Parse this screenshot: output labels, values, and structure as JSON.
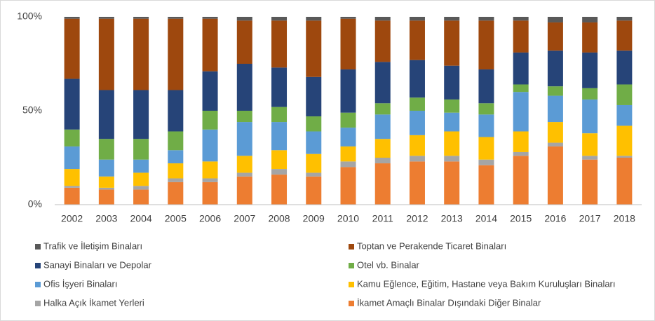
{
  "chart_data": {
    "type": "stacked_bar_100",
    "categories": [
      "2002",
      "2003",
      "2004",
      "2005",
      "2006",
      "2007",
      "2008",
      "2009",
      "2010",
      "2011",
      "2012",
      "2013",
      "2014",
      "2015",
      "2016",
      "2017",
      "2018"
    ],
    "series": [
      {
        "name": "Trafik ve İletişim Binaları",
        "color": "#595959",
        "values": [
          1,
          1,
          1,
          1,
          1,
          2,
          2,
          2,
          1,
          2,
          2,
          2,
          2,
          2,
          3,
          3,
          2
        ]
      },
      {
        "name": "Toptan ve Perakende Ticaret Binaları",
        "color": "#9e480e",
        "values": [
          32,
          38,
          38,
          38,
          28,
          23,
          25,
          30,
          27,
          22,
          21,
          24,
          26,
          17,
          15,
          16,
          16
        ]
      },
      {
        "name": "Sanayi Binaları ve Depolar",
        "color": "#264478",
        "values": [
          27,
          26,
          26,
          22,
          21,
          25,
          21,
          21,
          23,
          22,
          20,
          18,
          18,
          17,
          19,
          19,
          18
        ]
      },
      {
        "name": "Otel vb. Binalar",
        "color": "#70ad47",
        "values": [
          9,
          11,
          11,
          10,
          10,
          6,
          8,
          8,
          8,
          6,
          7,
          7,
          6,
          4,
          5,
          6,
          11
        ]
      },
      {
        "name": "Ofis İşyeri Binaları",
        "color": "#5b9bd5",
        "values": [
          12,
          9,
          7,
          7,
          17,
          18,
          15,
          12,
          10,
          13,
          13,
          10,
          12,
          21,
          14,
          18,
          11
        ]
      },
      {
        "name": "Kamu Eğlence, Eğitim, Hastane veya Bakım Kuruluşları Binaları",
        "color": "#ffc000",
        "values": [
          9,
          6,
          7,
          8,
          9,
          9,
          10,
          10,
          8,
          10,
          11,
          13,
          12,
          11,
          11,
          12,
          16
        ]
      },
      {
        "name": "Halka Açık İkamet Yerleri",
        "color": "#a5a5a5",
        "values": [
          1,
          1,
          2,
          2,
          2,
          2,
          3,
          2,
          3,
          3,
          3,
          3,
          3,
          2,
          2,
          2,
          1
        ]
      },
      {
        "name": "İkamet Amaçlı Binalar Dışındaki Diğer Binalar",
        "color": "#ed7d31",
        "values": [
          9,
          8,
          8,
          12,
          12,
          15,
          16,
          15,
          20,
          22,
          23,
          23,
          21,
          26,
          31,
          24,
          25
        ]
      }
    ],
    "ylim": [
      0,
      100
    ],
    "yticks": [
      {
        "value": 0,
        "label": "0%"
      },
      {
        "value": 50,
        "label": "50%"
      },
      {
        "value": 100,
        "label": "100%"
      }
    ],
    "grid": false
  }
}
